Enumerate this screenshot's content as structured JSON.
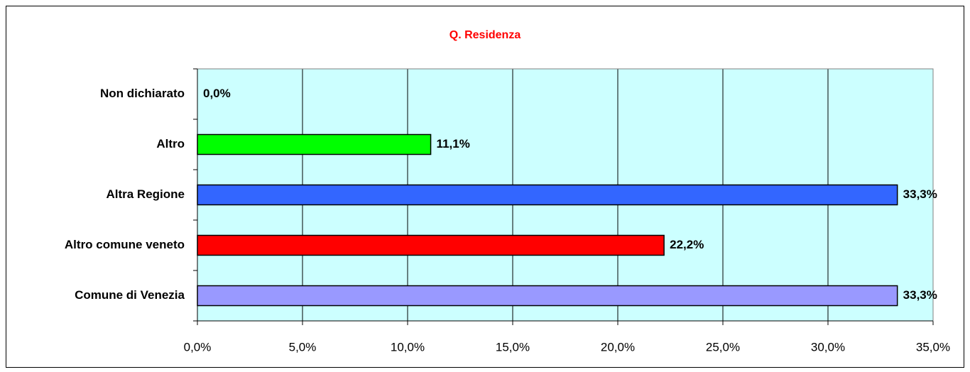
{
  "chart_data": {
    "type": "bar",
    "orientation": "horizontal",
    "title": "Q. Residenza",
    "categories": [
      "Non dichiarato",
      "Altro",
      "Altra Regione",
      "Altro comune veneto",
      "Comune di Venezia"
    ],
    "values": [
      0.0,
      11.1,
      33.3,
      22.2,
      33.3
    ],
    "value_labels": [
      "0,0%",
      "11,1%",
      "33,3%",
      "22,2%",
      "33,3%"
    ],
    "colors": [
      null,
      "#00ff00",
      "#3366ff",
      "#ff0000",
      "#9999ff"
    ],
    "xlim": [
      0,
      35
    ],
    "xticks": [
      {
        "value": 0,
        "label": "0,0%"
      },
      {
        "value": 5,
        "label": "5,0%"
      },
      {
        "value": 10,
        "label": "10,0%"
      },
      {
        "value": 15,
        "label": "15,0%"
      },
      {
        "value": 20,
        "label": "20,0%"
      },
      {
        "value": 25,
        "label": "25,0%"
      },
      {
        "value": 30,
        "label": "30,0%"
      },
      {
        "value": 35,
        "label": "35,0%"
      }
    ],
    "grid": true
  }
}
